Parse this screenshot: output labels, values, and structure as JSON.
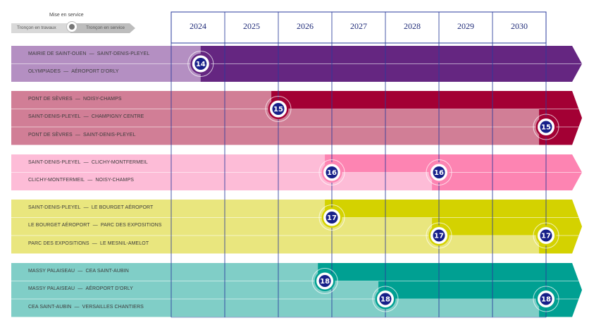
{
  "legend": {
    "title": "Mise en service",
    "left_label": "Tronçon en travaux",
    "right_label": "Tronçon en service",
    "icon": "milestone-dot-icon"
  },
  "years": [
    "2024",
    "2025",
    "2026",
    "2027",
    "2028",
    "2029",
    "2030"
  ],
  "colors": {
    "grid": "#2a3b9c",
    "badge": "#172089",
    "year_text": "#1e2a78"
  },
  "lines": [
    {
      "number": "14",
      "light": "#b48fc2",
      "dark": "#652681",
      "rows": [
        {
          "label": "MAIRIE DE SAINT-OUEN  —  SAINT-DENIS-PLEYEL",
          "opening_year": 2024.55
        },
        {
          "label": "OLYMPIADES  —  AÉROPORT D'ORLY",
          "opening_year": 2024.55
        }
      ],
      "badges": [
        {
          "text": "14",
          "year": 2024.55,
          "row_position": 1.0
        }
      ]
    },
    {
      "number": "15",
      "light": "#d17e96",
      "dark": "#a30034",
      "rows": [
        {
          "label": "PONT DE SÈVRES  —  NOISY-CHAMPS",
          "opening_year": 2025.87
        },
        {
          "label": "SAINT-DENIS-PLEYEL  —  CHAMPIGNY CENTRE",
          "opening_year": 2030.87
        },
        {
          "label": "PONT DE SÈVRES  —  SAINT-DENIS-PLEYEL",
          "opening_year": 2030.87
        }
      ],
      "badges": [
        {
          "text": "15",
          "year": 2026.0,
          "row_position": 1.0
        },
        {
          "text": "15",
          "year": 2031.0,
          "row_position": 2.0
        }
      ]
    },
    {
      "number": "16",
      "light": "#fdbcd7",
      "dark": "#fd84b2",
      "rows": [
        {
          "label": "SAINT-DENIS-PLEYEL  —  CLICHY-MONTFERMEIL",
          "opening_year": 2026.87
        },
        {
          "label": "CLICHY-MONTFERMEIL  —  NOISY-CHAMPS",
          "opening_year": 2028.87
        }
      ],
      "badges": [
        {
          "text": "16",
          "year": 2027.0,
          "row_position": 1.0
        },
        {
          "text": "16",
          "year": 2029.0,
          "row_position": 1.0
        }
      ]
    },
    {
      "number": "17",
      "light": "#e9e67e",
      "dark": "#d4d200",
      "rows": [
        {
          "label": "SAINT-DENIS-PLEYEL  —  LE BOURGET AÉROPORT",
          "opening_year": 2026.87
        },
        {
          "label": "LE BOURGET AÉROPORT  —  PARC DES EXPOSITIONS",
          "opening_year": 2028.87
        },
        {
          "label": "PARC DES EXPOSITIONS  —  LE MESNIL-AMELOT",
          "opening_year": 2030.87
        }
      ],
      "badges": [
        {
          "text": "17",
          "year": 2027.0,
          "row_position": 1.0
        },
        {
          "text": "17",
          "year": 2029.0,
          "row_position": 2.0
        },
        {
          "text": "17",
          "year": 2031.0,
          "row_position": 2.0
        }
      ]
    },
    {
      "number": "18",
      "light": "#80cec7",
      "dark": "#00a092",
      "rows": [
        {
          "label": "MASSY PALAISEAU  —  CEA SAINT-AUBIN",
          "opening_year": 2026.74
        },
        {
          "label": "MASSY PALAISEAU  —  AÉROPORT D'ORLY",
          "opening_year": 2027.87
        },
        {
          "label": "CEA SAINT-AUBIN  —  VERSAILLES CHANTIERS",
          "opening_year": 2030.87
        }
      ],
      "badges": [
        {
          "text": "18",
          "year": 2026.87,
          "row_position": 1.0
        },
        {
          "text": "18",
          "year": 2028.0,
          "row_position": 2.0
        },
        {
          "text": "18",
          "year": 2031.0,
          "row_position": 2.0
        }
      ]
    }
  ]
}
